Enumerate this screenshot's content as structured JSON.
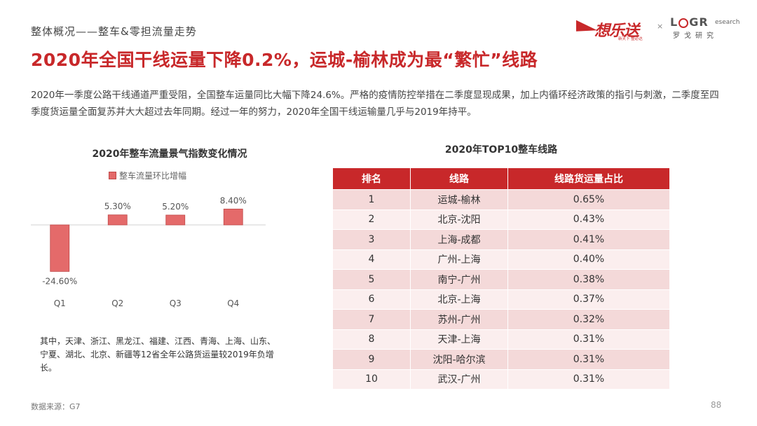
{
  "header": {
    "section": "整体概况——整车&零担流量走势",
    "title": "2020年全国干线运量下降0.2%，运城-榆林成为最“繁忙”线路",
    "intro": "2020年一季度公路干线通道严重受阻，全国整车运量同比大幅下降24.6%。严格的疫情防控举措在二季度显现成果，加上内循环经济政策的指引与刺激，二季度至四季度货运量全面复苏并大大超过去年同期。经过一年的努力，2020年全国干线运输量几乎与2019年持平。"
  },
  "logos": {
    "logo1_text": "想乐送",
    "logo1_slogan": "新天下 整必达",
    "times_sign": "×",
    "logo2_brand_l": "L",
    "logo2_brand_g": "G",
    "logo2_brand_r": "R",
    "logo2_research": "esearch",
    "logo2_cn": "罗戈研究"
  },
  "chart_data": {
    "type": "bar",
    "title": "2020年整车流量景气指数变化情况",
    "categories": [
      "Q1",
      "Q2",
      "Q3",
      "Q4"
    ],
    "series": [
      {
        "name": "整车流量环比增幅",
        "values": [
          -24.6,
          5.3,
          5.2,
          8.4
        ]
      }
    ],
    "data_labels": [
      "-24.60%",
      "5.30%",
      "5.20%",
      "8.40%"
    ],
    "ylim": [
      -30,
      10
    ],
    "bar_color": "#e46a6a",
    "bar_border_color": "#c04848",
    "legend_position": "top-left"
  },
  "note": "其中，天津、浙江、黑龙江、福建、江西、青海、上海、山东、宁夏、湖北、北京、新疆等12省全年公路货运量较2019年负增长。",
  "table": {
    "title": "2020年TOP10整车线路",
    "headers": [
      "排名",
      "线路",
      "线路货运量占比"
    ],
    "rows": [
      [
        "1",
        "运城-榆林",
        "0.65%"
      ],
      [
        "2",
        "北京-沈阳",
        "0.43%"
      ],
      [
        "3",
        "上海-成都",
        "0.41%"
      ],
      [
        "4",
        "广州-上海",
        "0.40%"
      ],
      [
        "5",
        "南宁-广州",
        "0.38%"
      ],
      [
        "6",
        "北京-上海",
        "0.37%"
      ],
      [
        "7",
        "苏州-广州",
        "0.32%"
      ],
      [
        "8",
        "天津-上海",
        "0.31%"
      ],
      [
        "9",
        "沈阳-哈尔滨",
        "0.31%"
      ],
      [
        "10",
        "武汉-广州",
        "0.31%"
      ]
    ]
  },
  "footer": {
    "source": "数据来源：G7",
    "page": "88"
  },
  "colors": {
    "accent": "#c8282a",
    "table_row_odd": "#f4d9d9",
    "table_row_even": "#fbeeee"
  }
}
